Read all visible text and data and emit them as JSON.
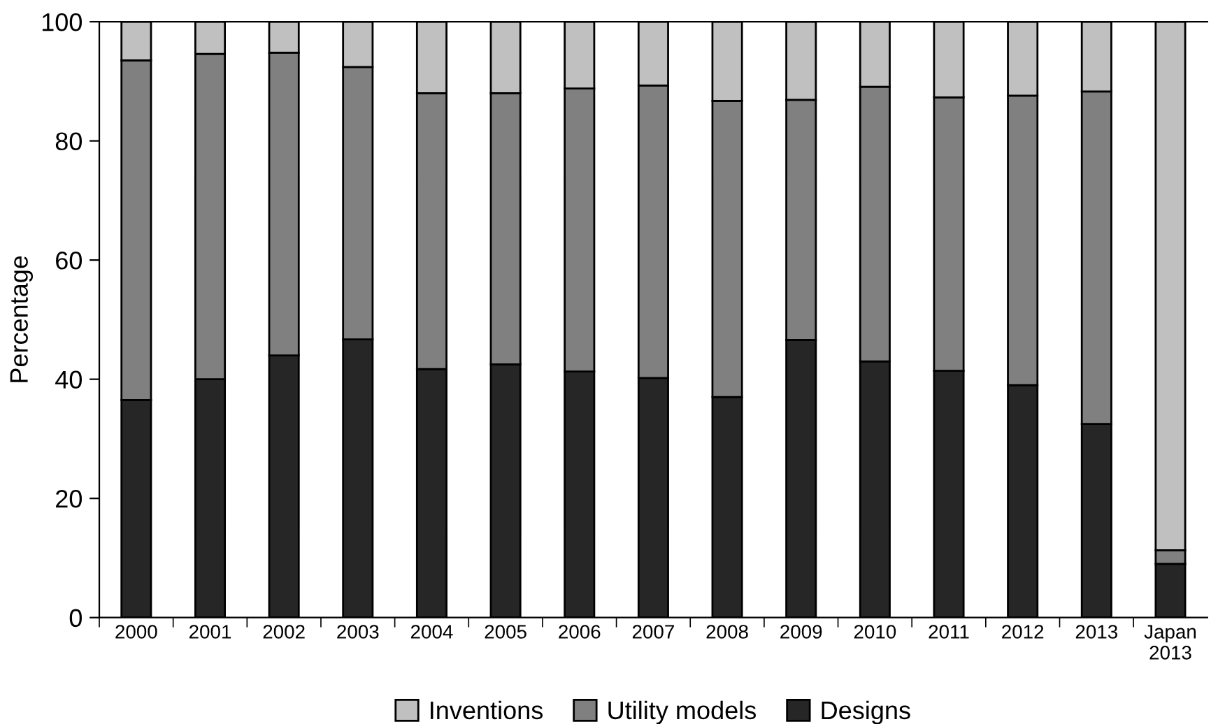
{
  "chart_data": {
    "type": "bar",
    "stacked": true,
    "ylabel": "Percentage",
    "categories": [
      "2000",
      "2001",
      "2002",
      "2003",
      "2004",
      "2005",
      "2006",
      "2007",
      "2008",
      "2009",
      "2010",
      "2011",
      "2012",
      "2013",
      "Japan\n2013"
    ],
    "series": [
      {
        "name": "Designs",
        "color": "#262626",
        "values": [
          36.5,
          40,
          44,
          46.7,
          41.7,
          42.5,
          41.3,
          40.2,
          37,
          46.6,
          43,
          41.4,
          39,
          32.5,
          9
        ]
      },
      {
        "name": "Utility models",
        "color": "#808080",
        "values": [
          57,
          54.6,
          50.8,
          45.7,
          46.3,
          45.5,
          47.5,
          49.1,
          49.7,
          40.3,
          46.1,
          45.9,
          48.6,
          55.8,
          2.3
        ]
      },
      {
        "name": "Inventions",
        "color": "#c0c0c0",
        "values": [
          6.5,
          5.4,
          5.2,
          7.6,
          12,
          12,
          11.2,
          10.7,
          13.3,
          13.1,
          10.9,
          12.7,
          12.4,
          11.7,
          88.7
        ]
      }
    ],
    "ylim": [
      0,
      100
    ],
    "yticks": [
      0,
      20,
      40,
      60,
      80,
      100
    ],
    "grid": false,
    "legend": "bottom"
  }
}
